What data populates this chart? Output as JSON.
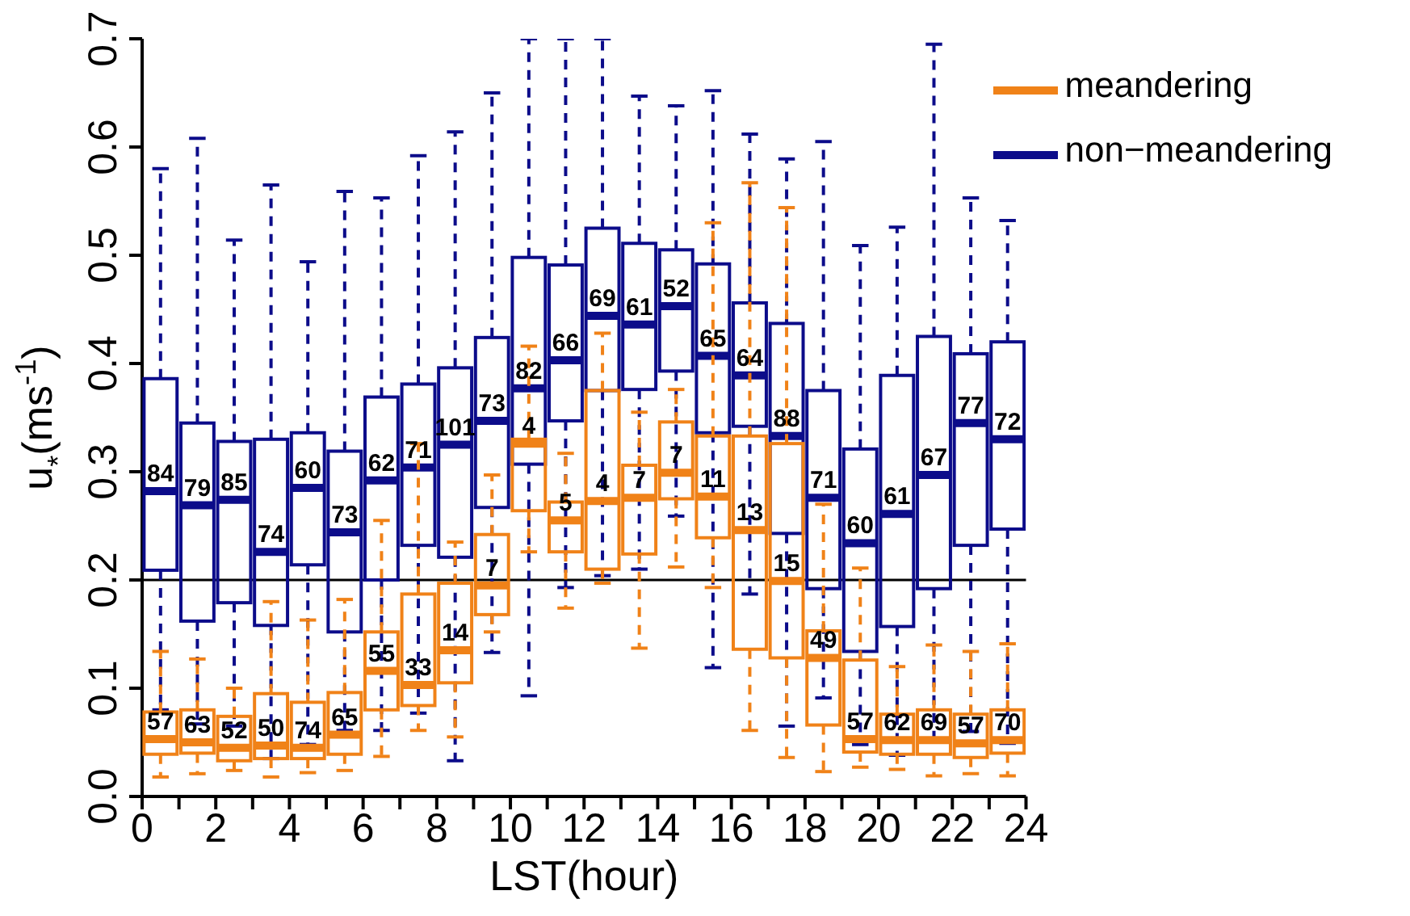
{
  "chart_data": {
    "type": "box",
    "xlabel": "LST(hour)",
    "ylabel": "u$_{*}$(ms$^{-1}$)",
    "xlim": [
      0,
      24
    ],
    "xticks": [
      0,
      {
        "value": 1,
        "label": null
      },
      2,
      {
        "value": 3,
        "label": null
      },
      4,
      {
        "value": 5,
        "label": null
      },
      6,
      {
        "value": 7,
        "label": null
      },
      8,
      {
        "value": 9,
        "label": null
      },
      10,
      {
        "value": 11,
        "label": null
      },
      12,
      {
        "value": 13,
        "label": null
      },
      14,
      {
        "value": 15,
        "label": null
      },
      16,
      {
        "value": 17,
        "label": null
      },
      18,
      {
        "value": 19,
        "label": null
      },
      20,
      {
        "value": 21,
        "label": null
      },
      22,
      {
        "value": 23,
        "label": null
      },
      24
    ],
    "ylim": [
      0,
      0.7
    ],
    "yticks": [
      {
        "value": 0,
        "label": "0.0"
      },
      0.1,
      0.2,
      0.3,
      0.4,
      0.5,
      0.6,
      0.7
    ],
    "legend": "top right",
    "ref_lines": [
      {
        "axis": "y",
        "value": 0.2,
        "label": null,
        "color": "#000000"
      }
    ],
    "series": [
      {
        "name": "non−meandering",
        "color": "#0c0c8a",
        "x": [
          0.5,
          1.5,
          2.5,
          3.5,
          4.5,
          5.5,
          6.5,
          7.5,
          8.5,
          9.5,
          10.5,
          11.5,
          12.5,
          13.5,
          14.5,
          15.5,
          16.5,
          17.5,
          18.5,
          19.5,
          20.5,
          21.5,
          22.5,
          23.5
        ],
        "boxes": [
          {
            "low": 0.08,
            "q1": 0.209,
            "median": 0.282,
            "q3": 0.386,
            "high": 0.58
          },
          {
            "low": 0.067,
            "q1": 0.162,
            "median": 0.269,
            "q3": 0.345,
            "high": 0.608
          },
          {
            "low": 0.065,
            "q1": 0.179,
            "median": 0.274,
            "q3": 0.328,
            "high": 0.514
          },
          {
            "low": 0.035,
            "q1": 0.158,
            "median": 0.226,
            "q3": 0.33,
            "high": 0.565
          },
          {
            "low": 0.048,
            "q1": 0.214,
            "median": 0.285,
            "q3": 0.336,
            "high": 0.494
          },
          {
            "low": 0.061,
            "q1": 0.152,
            "median": 0.244,
            "q3": 0.319,
            "high": 0.559
          },
          {
            "low": 0.061,
            "q1": 0.2,
            "median": 0.292,
            "q3": 0.369,
            "high": 0.553
          },
          {
            "low": 0.077,
            "q1": 0.232,
            "median": 0.304,
            "q3": 0.381,
            "high": 0.592
          },
          {
            "low": 0.033,
            "q1": 0.221,
            "median": 0.325,
            "q3": 0.396,
            "high": 0.614
          },
          {
            "low": 0.133,
            "q1": 0.267,
            "median": 0.347,
            "q3": 0.424,
            "high": 0.65
          },
          {
            "low": 0.093,
            "q1": 0.307,
            "median": 0.377,
            "q3": 0.498,
            "high": 0.7
          },
          {
            "low": 0.193,
            "q1": 0.347,
            "median": 0.403,
            "q3": 0.491,
            "high": 0.7
          },
          {
            "low": 0.204,
            "q1": 0.375,
            "median": 0.444,
            "q3": 0.525,
            "high": 0.7
          },
          {
            "low": 0.21,
            "q1": 0.376,
            "median": 0.436,
            "q3": 0.511,
            "high": 0.647
          },
          {
            "low": 0.259,
            "q1": 0.393,
            "median": 0.453,
            "q3": 0.505,
            "high": 0.638
          },
          {
            "low": 0.119,
            "q1": 0.336,
            "median": 0.407,
            "q3": 0.492,
            "high": 0.652
          },
          {
            "low": 0.187,
            "q1": 0.342,
            "median": 0.389,
            "q3": 0.456,
            "high": 0.612
          },
          {
            "low": 0.065,
            "q1": 0.243,
            "median": 0.333,
            "q3": 0.437,
            "high": 0.589
          },
          {
            "low": 0.091,
            "q1": 0.192,
            "median": 0.276,
            "q3": 0.375,
            "high": 0.605
          },
          {
            "low": 0.048,
            "q1": 0.134,
            "median": 0.234,
            "q3": 0.321,
            "high": 0.509
          },
          {
            "low": 0.038,
            "q1": 0.157,
            "median": 0.261,
            "q3": 0.389,
            "high": 0.526
          },
          {
            "low": 0.05,
            "q1": 0.192,
            "median": 0.297,
            "q3": 0.425,
            "high": 0.695
          },
          {
            "low": 0.06,
            "q1": 0.232,
            "median": 0.345,
            "q3": 0.409,
            "high": 0.553
          },
          {
            "low": 0.049,
            "q1": 0.247,
            "median": 0.33,
            "q3": 0.42,
            "high": 0.532
          }
        ]
      },
      {
        "name": "meandering",
        "color": "#f08218",
        "x": [
          0.5,
          1.5,
          2.5,
          3.5,
          4.5,
          5.5,
          6.5,
          7.5,
          8.5,
          9.5,
          10.5,
          11.5,
          12.5,
          13.5,
          14.5,
          15.5,
          16.5,
          17.5,
          18.5,
          19.5,
          20.5,
          21.5,
          22.5,
          23.5
        ],
        "boxes": [
          {
            "low": 0.018,
            "q1": 0.039,
            "median": 0.053,
            "q3": 0.078,
            "high": 0.134
          },
          {
            "low": 0.021,
            "q1": 0.04,
            "median": 0.05,
            "q3": 0.08,
            "high": 0.127
          },
          {
            "low": 0.024,
            "q1": 0.033,
            "median": 0.045,
            "q3": 0.074,
            "high": 0.1
          },
          {
            "low": 0.018,
            "q1": 0.035,
            "median": 0.047,
            "q3": 0.095,
            "high": 0.18
          },
          {
            "low": 0.022,
            "q1": 0.035,
            "median": 0.045,
            "q3": 0.087,
            "high": 0.163
          },
          {
            "low": 0.024,
            "q1": 0.039,
            "median": 0.057,
            "q3": 0.096,
            "high": 0.182
          },
          {
            "low": 0.037,
            "q1": 0.08,
            "median": 0.116,
            "q3": 0.152,
            "high": 0.255
          },
          {
            "low": 0.061,
            "q1": 0.084,
            "median": 0.103,
            "q3": 0.187,
            "high": 0.326
          },
          {
            "low": 0.055,
            "q1": 0.105,
            "median": 0.135,
            "q3": 0.197,
            "high": 0.235
          },
          {
            "low": 0.152,
            "q1": 0.168,
            "median": 0.195,
            "q3": 0.242,
            "high": 0.297
          },
          {
            "low": 0.226,
            "q1": 0.264,
            "median": 0.326,
            "q3": 0.33,
            "high": 0.416
          },
          {
            "low": 0.174,
            "q1": 0.226,
            "median": 0.255,
            "q3": 0.272,
            "high": 0.317
          },
          {
            "low": 0.197,
            "q1": 0.21,
            "median": 0.273,
            "q3": 0.375,
            "high": 0.428
          },
          {
            "low": 0.137,
            "q1": 0.224,
            "median": 0.276,
            "q3": 0.306,
            "high": 0.355
          },
          {
            "low": 0.212,
            "q1": 0.275,
            "median": 0.299,
            "q3": 0.346,
            "high": 0.376
          },
          {
            "low": 0.193,
            "q1": 0.239,
            "median": 0.277,
            "q3": 0.333,
            "high": 0.53
          },
          {
            "low": 0.061,
            "q1": 0.136,
            "median": 0.246,
            "q3": 0.333,
            "high": 0.567
          },
          {
            "low": 0.036,
            "q1": 0.128,
            "median": 0.199,
            "q3": 0.326,
            "high": 0.544
          },
          {
            "low": 0.023,
            "q1": 0.066,
            "median": 0.128,
            "q3": 0.153,
            "high": 0.27
          },
          {
            "low": 0.027,
            "q1": 0.041,
            "median": 0.053,
            "q3": 0.126,
            "high": 0.211
          },
          {
            "low": 0.025,
            "q1": 0.039,
            "median": 0.052,
            "q3": 0.076,
            "high": 0.12
          },
          {
            "low": 0.019,
            "q1": 0.039,
            "median": 0.052,
            "q3": 0.08,
            "high": 0.14
          },
          {
            "low": 0.021,
            "q1": 0.036,
            "median": 0.049,
            "q3": 0.076,
            "high": 0.134
          },
          {
            "low": 0.019,
            "q1": 0.04,
            "median": 0.052,
            "q3": 0.08,
            "high": 0.141
          }
        ]
      }
    ],
    "annotations": [
      {
        "text": "84",
        "x": 0.5,
        "y": 0.282
      },
      {
        "text": "79",
        "x": 1.5,
        "y": 0.269
      },
      {
        "text": "85",
        "x": 2.5,
        "y": 0.274
      },
      {
        "text": "74",
        "x": 3.5,
        "y": 0.226
      },
      {
        "text": "60",
        "x": 4.5,
        "y": 0.285
      },
      {
        "text": "73",
        "x": 5.5,
        "y": 0.244
      },
      {
        "text": "62",
        "x": 6.5,
        "y": 0.292
      },
      {
        "text": "71",
        "x": 7.5,
        "y": 0.304
      },
      {
        "text": "101",
        "x": 8.5,
        "y": 0.325
      },
      {
        "text": "73",
        "x": 9.5,
        "y": 0.347
      },
      {
        "text": "82",
        "x": 10.5,
        "y": 0.377
      },
      {
        "text": "66",
        "x": 11.5,
        "y": 0.403
      },
      {
        "text": "69",
        "x": 12.5,
        "y": 0.444
      },
      {
        "text": "61",
        "x": 13.5,
        "y": 0.436
      },
      {
        "text": "52",
        "x": 14.5,
        "y": 0.453
      },
      {
        "text": "65",
        "x": 15.5,
        "y": 0.407
      },
      {
        "text": "64",
        "x": 16.5,
        "y": 0.389
      },
      {
        "text": "88",
        "x": 17.5,
        "y": 0.333
      },
      {
        "text": "71",
        "x": 18.5,
        "y": 0.276
      },
      {
        "text": "60",
        "x": 19.5,
        "y": 0.234
      },
      {
        "text": "61",
        "x": 20.5,
        "y": 0.261
      },
      {
        "text": "67",
        "x": 21.5,
        "y": 0.297
      },
      {
        "text": "77",
        "x": 22.5,
        "y": 0.345
      },
      {
        "text": "72",
        "x": 23.5,
        "y": 0.33
      },
      {
        "text": "57",
        "x": 0.5,
        "y": 0.053
      },
      {
        "text": "63",
        "x": 1.5,
        "y": 0.05
      },
      {
        "text": "52",
        "x": 2.5,
        "y": 0.045
      },
      {
        "text": "50",
        "x": 3.5,
        "y": 0.047
      },
      {
        "text": "74",
        "x": 4.5,
        "y": 0.045
      },
      {
        "text": "65",
        "x": 5.5,
        "y": 0.057
      },
      {
        "text": "55",
        "x": 6.5,
        "y": 0.116
      },
      {
        "text": "33",
        "x": 7.5,
        "y": 0.103
      },
      {
        "text": "14",
        "x": 8.5,
        "y": 0.135
      },
      {
        "text": "7",
        "x": 9.5,
        "y": 0.195
      },
      {
        "text": "4",
        "x": 10.5,
        "y": 0.326
      },
      {
        "text": "5",
        "x": 11.5,
        "y": 0.255
      },
      {
        "text": "4",
        "x": 12.5,
        "y": 0.273
      },
      {
        "text": "7",
        "x": 13.5,
        "y": 0.276
      },
      {
        "text": "7",
        "x": 14.5,
        "y": 0.299
      },
      {
        "text": "11",
        "x": 15.5,
        "y": 0.277
      },
      {
        "text": "13",
        "x": 16.5,
        "y": 0.246
      },
      {
        "text": "15",
        "x": 17.5,
        "y": 0.199
      },
      {
        "text": "49",
        "x": 18.5,
        "y": 0.128
      },
      {
        "text": "57",
        "x": 19.5,
        "y": 0.053
      },
      {
        "text": "62",
        "x": 20.5,
        "y": 0.052
      },
      {
        "text": "69",
        "x": 21.5,
        "y": 0.052
      },
      {
        "text": "57",
        "x": 22.5,
        "y": 0.049
      },
      {
        "text": "70",
        "x": 23.5,
        "y": 0.052
      }
    ]
  }
}
